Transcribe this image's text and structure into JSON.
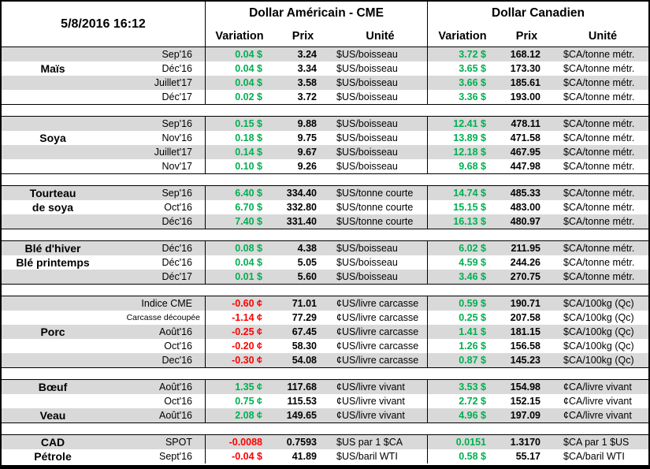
{
  "header": {
    "timestamp": "5/8/2016 16:12",
    "us_title": "Dollar Américain - CME",
    "ca_title": "Dollar Canadien",
    "subcolumns": {
      "variation": "Variation",
      "prix": "Prix",
      "unite": "Unité"
    }
  },
  "colors": {
    "positive_change": "#00B050",
    "negative_change": "#FF0000",
    "row_shade": "#D9D9D9",
    "border": "#000000",
    "background": "#FFFFFF"
  },
  "sections": [
    {
      "id": "mais",
      "rows": [
        {
          "name": "",
          "month": "Sep'16",
          "small_month": false,
          "var_us": "0.04 $",
          "var_us_dir": "pos",
          "prix_us": "3.24",
          "unit_us": "$US/boisseau",
          "var_ca": "3.72 $",
          "var_ca_dir": "pos",
          "prix_ca": "168.12",
          "unit_ca": "$CA/tonne métr.",
          "shaded": true
        },
        {
          "name": "Maïs",
          "month": "Déc'16",
          "small_month": false,
          "var_us": "0.04 $",
          "var_us_dir": "pos",
          "prix_us": "3.34",
          "unit_us": "$US/boisseau",
          "var_ca": "3.65 $",
          "var_ca_dir": "pos",
          "prix_ca": "173.30",
          "unit_ca": "$CA/tonne métr.",
          "shaded": false
        },
        {
          "name": "",
          "month": "Juillet'17",
          "small_month": false,
          "var_us": "0.04 $",
          "var_us_dir": "pos",
          "prix_us": "3.58",
          "unit_us": "$US/boisseau",
          "var_ca": "3.66 $",
          "var_ca_dir": "pos",
          "prix_ca": "185.61",
          "unit_ca": "$CA/tonne métr.",
          "shaded": true
        },
        {
          "name": "",
          "month": "Déc'17",
          "small_month": false,
          "var_us": "0.02 $",
          "var_us_dir": "pos",
          "prix_us": "3.72",
          "unit_us": "$US/boisseau",
          "var_ca": "3.36 $",
          "var_ca_dir": "pos",
          "prix_ca": "193.00",
          "unit_ca": "$CA/tonne métr.",
          "shaded": false
        }
      ]
    },
    {
      "id": "soya",
      "rows": [
        {
          "name": "",
          "month": "Sep'16",
          "small_month": false,
          "var_us": "0.15 $",
          "var_us_dir": "pos",
          "prix_us": "9.88",
          "unit_us": "$US/boisseau",
          "var_ca": "12.41 $",
          "var_ca_dir": "pos",
          "prix_ca": "478.11",
          "unit_ca": "$CA/tonne métr.",
          "shaded": true
        },
        {
          "name": "Soya",
          "month": "Nov'16",
          "small_month": false,
          "var_us": "0.18 $",
          "var_us_dir": "pos",
          "prix_us": "9.75",
          "unit_us": "$US/boisseau",
          "var_ca": "13.89 $",
          "var_ca_dir": "pos",
          "prix_ca": "471.58",
          "unit_ca": "$CA/tonne métr.",
          "shaded": false
        },
        {
          "name": "",
          "month": "Juillet'17",
          "small_month": false,
          "var_us": "0.14 $",
          "var_us_dir": "pos",
          "prix_us": "9.67",
          "unit_us": "$US/boisseau",
          "var_ca": "12.18 $",
          "var_ca_dir": "pos",
          "prix_ca": "467.95",
          "unit_ca": "$CA/tonne métr.",
          "shaded": true
        },
        {
          "name": "",
          "month": "Nov'17",
          "small_month": false,
          "var_us": "0.10 $",
          "var_us_dir": "pos",
          "prix_us": "9.26",
          "unit_us": "$US/boisseau",
          "var_ca": "9.68 $",
          "var_ca_dir": "pos",
          "prix_ca": "447.98",
          "unit_ca": "$CA/tonne métr.",
          "shaded": false
        }
      ]
    },
    {
      "id": "tourteau-de-soya",
      "rows": [
        {
          "name": "Tourteau",
          "month": "Sep'16",
          "small_month": false,
          "var_us": "6.40 $",
          "var_us_dir": "pos",
          "prix_us": "334.40",
          "unit_us": "$US/tonne courte",
          "var_ca": "14.74 $",
          "var_ca_dir": "pos",
          "prix_ca": "485.33",
          "unit_ca": "$CA/tonne métr.",
          "shaded": true
        },
        {
          "name": "de soya",
          "month": "Oct'16",
          "small_month": false,
          "var_us": "6.70 $",
          "var_us_dir": "pos",
          "prix_us": "332.80",
          "unit_us": "$US/tonne courte",
          "var_ca": "15.15 $",
          "var_ca_dir": "pos",
          "prix_ca": "483.00",
          "unit_ca": "$CA/tonne métr.",
          "shaded": false
        },
        {
          "name": "",
          "month": "Déc'16",
          "small_month": false,
          "var_us": "7.40 $",
          "var_us_dir": "pos",
          "prix_us": "331.40",
          "unit_us": "$US/tonne courte",
          "var_ca": "16.13 $",
          "var_ca_dir": "pos",
          "prix_ca": "480.97",
          "unit_ca": "$CA/tonne métr.",
          "shaded": true
        }
      ]
    },
    {
      "id": "ble",
      "rows": [
        {
          "name": "Blé d'hiver",
          "month": "Déc'16",
          "small_month": false,
          "var_us": "0.08 $",
          "var_us_dir": "pos",
          "prix_us": "4.38",
          "unit_us": "$US/boisseau",
          "var_ca": "6.02 $",
          "var_ca_dir": "pos",
          "prix_ca": "211.95",
          "unit_ca": "$CA/tonne métr.",
          "shaded": true
        },
        {
          "name": "Blé printemps",
          "month": "Déc'16",
          "small_month": false,
          "var_us": "0.04 $",
          "var_us_dir": "pos",
          "prix_us": "5.05",
          "unit_us": "$US/boisseau",
          "var_ca": "4.59 $",
          "var_ca_dir": "pos",
          "prix_ca": "244.26",
          "unit_ca": "$CA/tonne métr.",
          "shaded": false
        },
        {
          "name": "",
          "month": "Déc'17",
          "small_month": false,
          "var_us": "0.01 $",
          "var_us_dir": "pos",
          "prix_us": "5.60",
          "unit_us": "$US/boisseau",
          "var_ca": "3.46 $",
          "var_ca_dir": "pos",
          "prix_ca": "270.75",
          "unit_ca": "$CA/tonne métr.",
          "shaded": true
        }
      ]
    },
    {
      "id": "porc",
      "rows": [
        {
          "name": "",
          "month": "Indice CME",
          "small_month": false,
          "var_us": "-0.60 ¢",
          "var_us_dir": "neg",
          "prix_us": "71.01",
          "unit_us": "¢US/livre carcasse",
          "var_ca": "0.59 $",
          "var_ca_dir": "pos",
          "prix_ca": "190.71",
          "unit_ca": "$CA/100kg (Qc)",
          "shaded": true
        },
        {
          "name": "",
          "month": "Carcasse découpée",
          "small_month": true,
          "var_us": "-1.14 ¢",
          "var_us_dir": "neg",
          "prix_us": "77.29",
          "unit_us": "¢US/livre carcasse",
          "var_ca": "0.25 $",
          "var_ca_dir": "pos",
          "prix_ca": "207.58",
          "unit_ca": "$CA/100kg (Qc)",
          "shaded": false
        },
        {
          "name": "Porc",
          "month": "Août'16",
          "small_month": false,
          "var_us": "-0.25 ¢",
          "var_us_dir": "neg",
          "prix_us": "67.45",
          "unit_us": "¢US/livre carcasse",
          "var_ca": "1.41 $",
          "var_ca_dir": "pos",
          "prix_ca": "181.15",
          "unit_ca": "$CA/100kg (Qc)",
          "shaded": true
        },
        {
          "name": "",
          "month": "Oct'16",
          "small_month": false,
          "var_us": "-0.20 ¢",
          "var_us_dir": "neg",
          "prix_us": "58.30",
          "unit_us": "¢US/livre carcasse",
          "var_ca": "1.26 $",
          "var_ca_dir": "pos",
          "prix_ca": "156.58",
          "unit_ca": "$CA/100kg (Qc)",
          "shaded": false
        },
        {
          "name": "",
          "month": "Dec'16",
          "small_month": false,
          "var_us": "-0.30 ¢",
          "var_us_dir": "neg",
          "prix_us": "54.08",
          "unit_us": "¢US/livre carcasse",
          "var_ca": "0.87 $",
          "var_ca_dir": "pos",
          "prix_ca": "145.23",
          "unit_ca": "$CA/100kg (Qc)",
          "shaded": true
        }
      ]
    },
    {
      "id": "boeuf-veau",
      "rows": [
        {
          "name": "Bœuf",
          "month": "Août'16",
          "small_month": false,
          "var_us": "1.35 ¢",
          "var_us_dir": "pos",
          "prix_us": "117.68",
          "unit_us": "¢US/livre vivant",
          "var_ca": "3.53 $",
          "var_ca_dir": "pos",
          "prix_ca": "154.98",
          "unit_ca": "¢CA/livre vivant",
          "shaded": true
        },
        {
          "name": "",
          "month": "Oct'16",
          "small_month": false,
          "var_us": "0.75 ¢",
          "var_us_dir": "pos",
          "prix_us": "115.53",
          "unit_us": "¢US/livre vivant",
          "var_ca": "2.72 $",
          "var_ca_dir": "pos",
          "prix_ca": "152.15",
          "unit_ca": "¢CA/livre vivant",
          "shaded": false
        },
        {
          "name": "Veau",
          "month": "Août'16",
          "small_month": false,
          "var_us": "2.08 ¢",
          "var_us_dir": "pos",
          "prix_us": "149.65",
          "unit_us": "¢US/livre vivant",
          "var_ca": "4.96 $",
          "var_ca_dir": "pos",
          "prix_ca": "197.09",
          "unit_ca": "¢CA/livre vivant",
          "shaded": true
        }
      ]
    },
    {
      "id": "cad-petrole",
      "rows": [
        {
          "name": "CAD",
          "month": "SPOT",
          "small_month": false,
          "var_us": "-0.0088",
          "var_us_dir": "neg",
          "prix_us": "0.7593",
          "unit_us": "$US par 1 $CA",
          "var_ca": "0.0151",
          "var_ca_dir": "pos",
          "prix_ca": "1.3170",
          "unit_ca": "$CA par 1 $US",
          "shaded": true
        },
        {
          "name": "Pétrole",
          "month": "Sept'16",
          "small_month": false,
          "var_us": "-0.04 $",
          "var_us_dir": "neg",
          "prix_us": "41.89",
          "unit_us": "$US/baril WTI",
          "var_ca": "0.58 $",
          "var_ca_dir": "pos",
          "prix_ca": "55.17",
          "unit_ca": "$CA/baril WTI",
          "shaded": false
        }
      ]
    }
  ]
}
